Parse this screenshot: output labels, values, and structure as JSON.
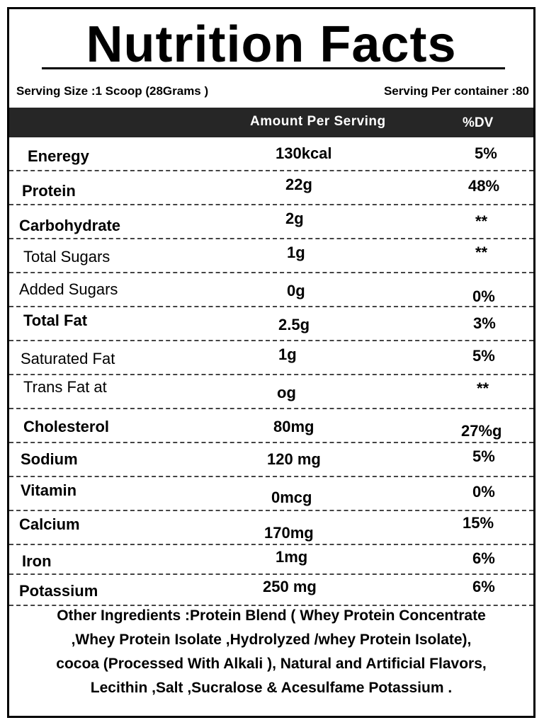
{
  "title": "Nutrition Facts",
  "serving_size": "Serving Size :1 Scoop (28Grams )",
  "servings_per_container": "Serving Per container :80",
  "header": {
    "amount": "Amount  Per  Serving",
    "dv": "%DV"
  },
  "rows": [
    {
      "name": "Eneregy",
      "amount": "130kcal",
      "dv": "5%"
    },
    {
      "name": "Protein",
      "amount": "22g",
      "dv": "48%"
    },
    {
      "name": "Carbohydrate",
      "amount": "2g",
      "dv": "**"
    },
    {
      "name": "Total Sugars",
      "amount": "1g",
      "dv": "**"
    },
    {
      "name": "Added Sugars",
      "amount": "0g",
      "dv": "0%"
    },
    {
      "name": "Total Fat",
      "amount": "2.5g",
      "dv": "3%"
    },
    {
      "name": "Saturated Fat",
      "amount": "1g",
      "dv": "5%"
    },
    {
      "name": "Trans Fat at",
      "amount": "og",
      "dv": "**"
    },
    {
      "name": "Cholesterol",
      "amount": "80mg",
      "dv": "27%g"
    },
    {
      "name": "Sodium",
      "amount": "120 mg",
      "dv": "5%"
    },
    {
      "name": "Vitamin",
      "amount": "0mcg",
      "dv": "0%"
    },
    {
      "name": "Calcium",
      "amount": "170mg",
      "dv": "15%"
    },
    {
      "name": "Iron",
      "amount": "1mg",
      "dv": "6%"
    },
    {
      "name": "Potassium",
      "amount": "250 mg",
      "dv": "6%"
    }
  ],
  "ingredients": [
    "Other Ingredients :Protein Blend ( Whey Protein Concentrate",
    ",Whey Protein Isolate ,Hydrolyzed /whey Protein Isolate),",
    "cocoa (Processed With Alkali ), Natural and Artificial Flavors,",
    "Lecithin ,Salt ,Sucralose & Acesulfame Potassium ."
  ]
}
